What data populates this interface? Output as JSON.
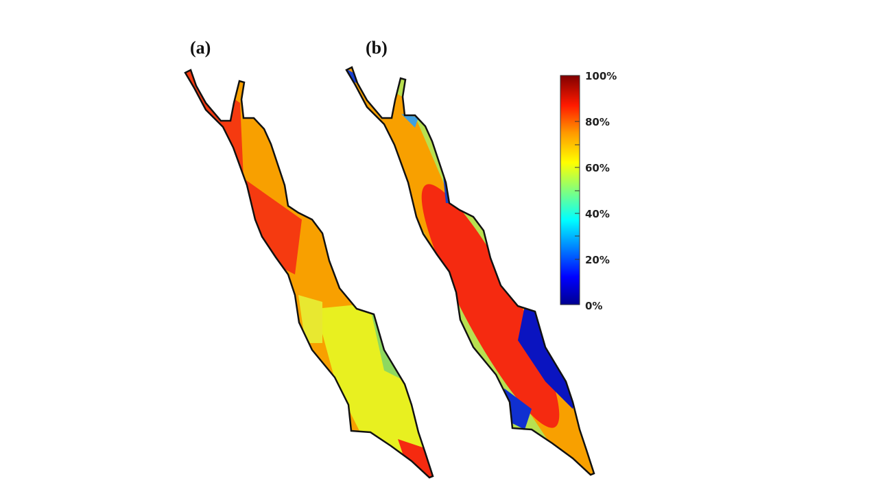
{
  "panels": [
    {
      "label": "(a)"
    },
    {
      "label": "(b)"
    }
  ],
  "colorbar": {
    "colormap": "jet",
    "range": [
      0,
      100
    ],
    "ticks": [
      "100%",
      "80%",
      "60%",
      "40%",
      "20%",
      "0%"
    ],
    "colors": [
      "#00008f",
      "#0000ff",
      "#00ffff",
      "#ffff00",
      "#ff8000",
      "#ff0000",
      "#800000"
    ]
  }
}
